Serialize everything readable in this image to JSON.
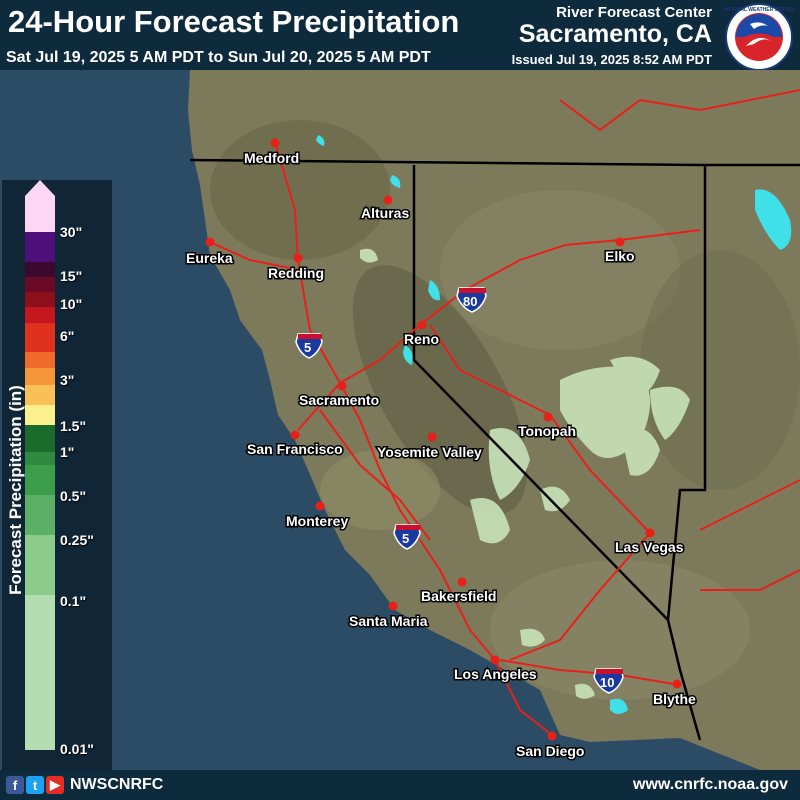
{
  "header": {
    "title": "24-Hour Forecast Precipitation",
    "subtitle": "Sat Jul 19, 2025 5 AM PDT to Sun Jul 20, 2025 5 AM PDT",
    "rfc_label": "River Forecast Center",
    "rfc_city": "Sacramento, CA",
    "issued": "Issued Jul 19, 2025 8:52 AM PDT",
    "logo_text": "NATIONAL WEATHER SERVICE"
  },
  "legend": {
    "title": "Forecast Precipitation (in)",
    "labels": [
      "30\"",
      "15\"",
      "10\"",
      "6\"",
      "3\"",
      "1.5\"",
      "1\"",
      "0.5\"",
      "0.25\"",
      "0.1\"",
      "0.01\""
    ],
    "colors": {
      "30": "#fcd6f5",
      "20": "#4d0f7a",
      "15": "#3c0a2e",
      "12": "#6a0a24",
      "10": "#8c0f1c",
      "8": "#c4161c",
      "6": "#e0301e",
      "4": "#f06a2a",
      "3": "#f5963a",
      "2": "#f8c056",
      "1.5": "#fbf08c",
      "1.25": "#1b6b2c",
      "1": "#2e8a3e",
      "0.75": "#3c9e4a",
      "0.5": "#5cb065",
      "0.25": "#8ccc8a",
      "0.1": "#b3dcb0",
      "0.01": "#d7ecd2"
    }
  },
  "map": {
    "ocean_color": "#2c4c66",
    "land_color": "#7d7a5c",
    "road_color": "#e8201a",
    "precip_light": "#c9e3b9",
    "lake_color": "#40e0e8",
    "cities": [
      "Medford",
      "Eureka",
      "Alturas",
      "Redding",
      "Elko",
      "Reno",
      "Sacramento",
      "San Francisco",
      "Yosemite Valley",
      "Tonopah",
      "Monterey",
      "Las Vegas",
      "Bakersfield",
      "Santa Maria",
      "Los Angeles",
      "Blythe",
      "San Diego"
    ],
    "shields": [
      "5",
      "80",
      "5",
      "10"
    ]
  },
  "footer": {
    "handle": "NWSCNRFC",
    "website": "www.cnrfc.noaa.gov",
    "social_icons": [
      "facebook-icon",
      "twitter-icon",
      "youtube-icon"
    ]
  }
}
